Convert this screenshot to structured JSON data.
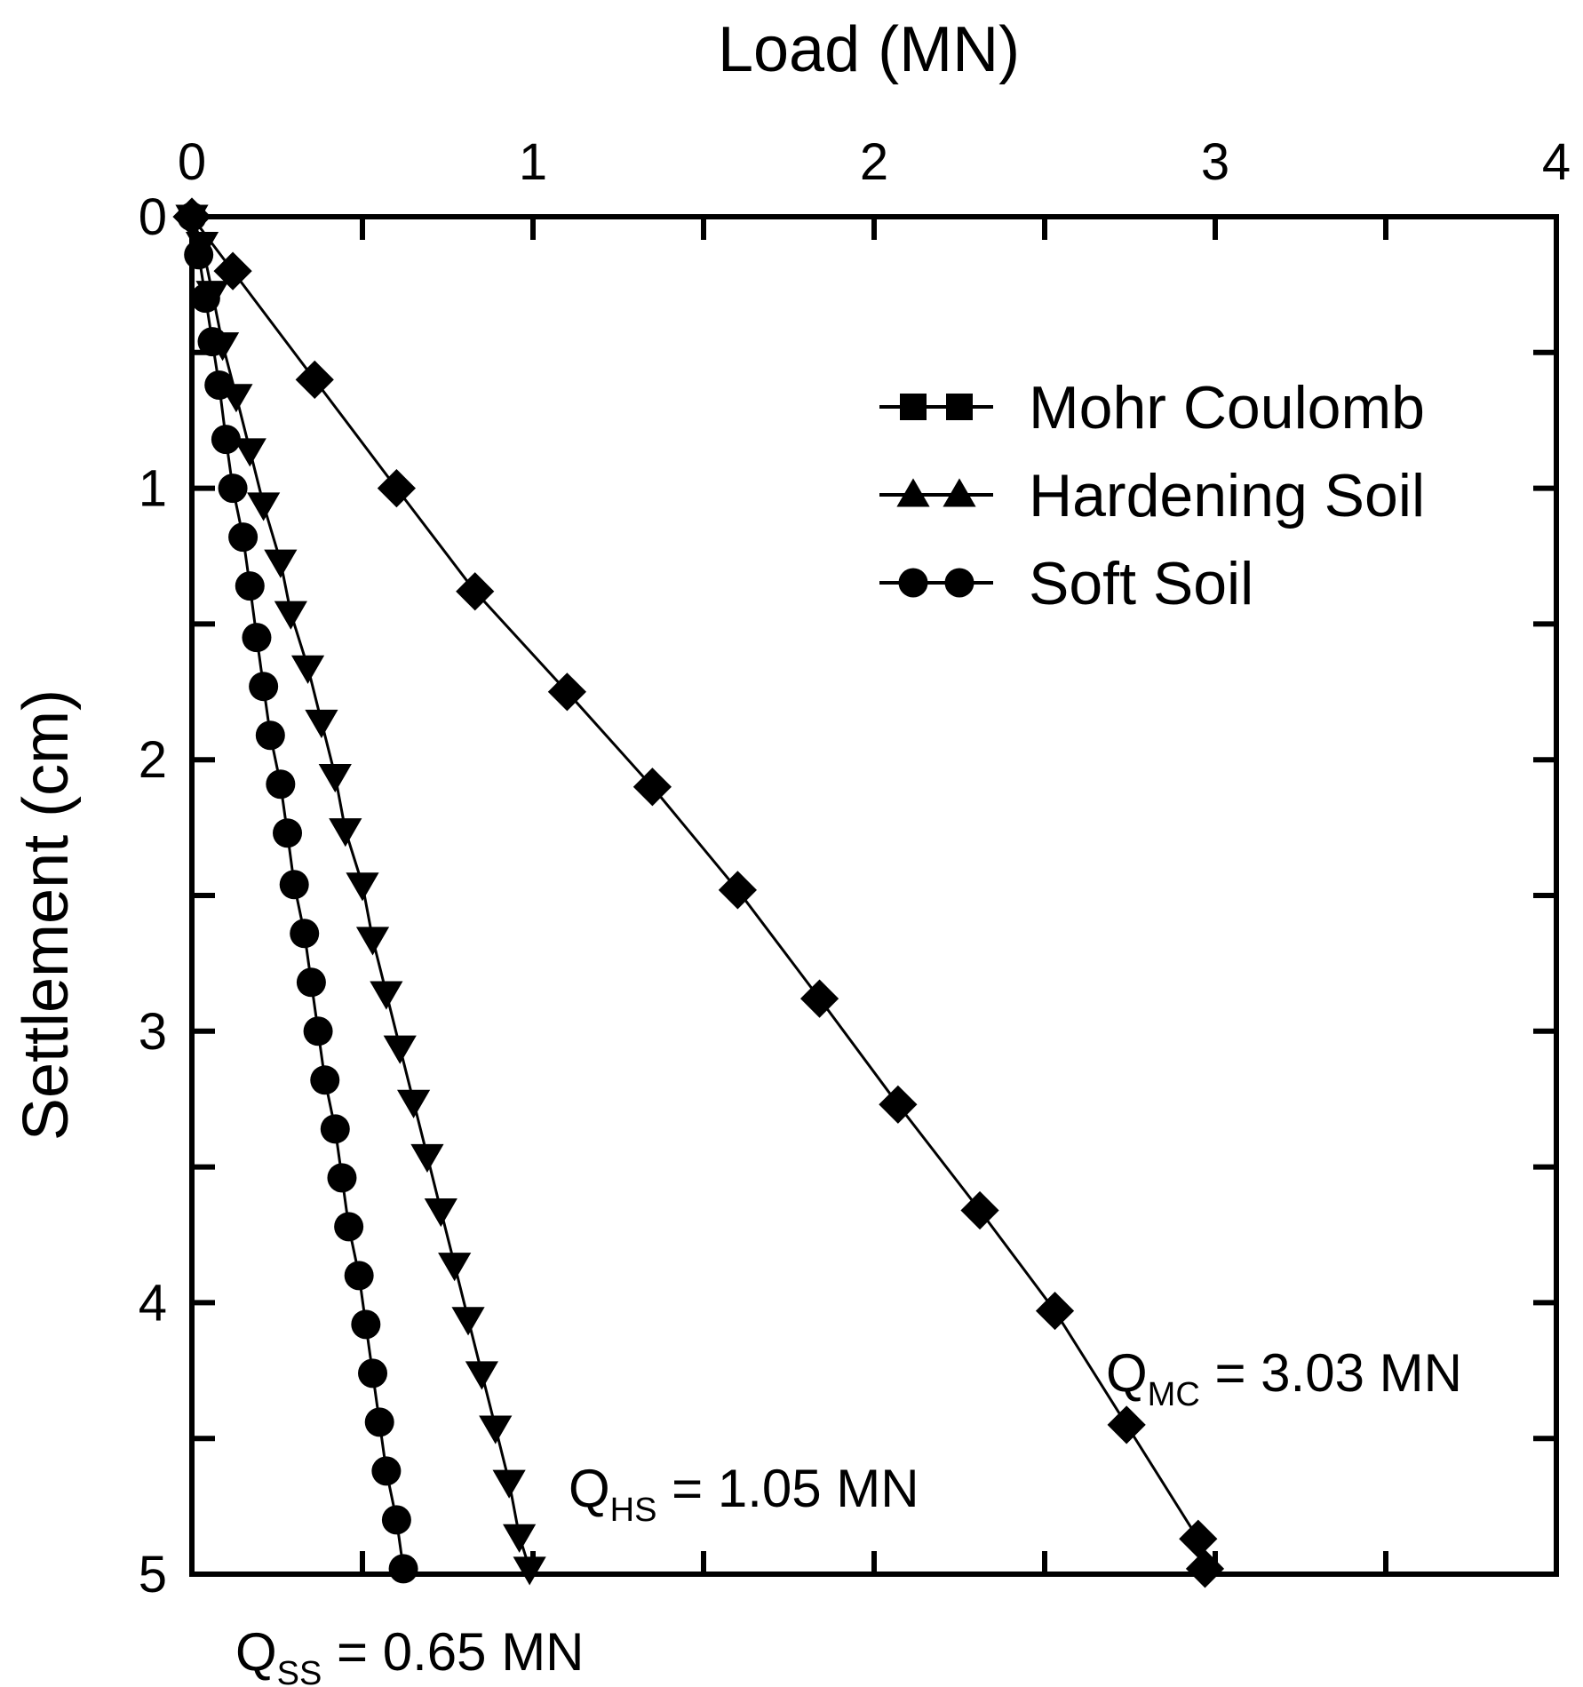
{
  "chart_data": {
    "type": "line",
    "xlabel": "Load (MN)",
    "ylabel": "Settlement (cm)",
    "xlim": [
      0,
      4
    ],
    "ylim": [
      0,
      5
    ],
    "x_axis_position": "top",
    "y_axis_inverted": true,
    "xticks": [
      0,
      1,
      2,
      3,
      4
    ],
    "yticks": [
      0,
      1,
      2,
      3,
      4,
      5
    ],
    "legend_position": "top-right",
    "grid": false,
    "series": [
      {
        "name": "Mohr Coulomb",
        "legend_marker": "square",
        "plot_marker": "diamond",
        "points": [
          {
            "x": 0.0,
            "y": 0.0
          },
          {
            "x": 0.12,
            "y": 0.2
          },
          {
            "x": 0.36,
            "y": 0.6
          },
          {
            "x": 0.6,
            "y": 1.0
          },
          {
            "x": 0.83,
            "y": 1.38
          },
          {
            "x": 1.1,
            "y": 1.75
          },
          {
            "x": 1.35,
            "y": 2.1
          },
          {
            "x": 1.6,
            "y": 2.48
          },
          {
            "x": 1.84,
            "y": 2.88
          },
          {
            "x": 2.07,
            "y": 3.27
          },
          {
            "x": 2.31,
            "y": 3.66
          },
          {
            "x": 2.53,
            "y": 4.03
          },
          {
            "x": 2.74,
            "y": 4.45
          },
          {
            "x": 2.95,
            "y": 4.87
          },
          {
            "x": 2.97,
            "y": 4.98
          }
        ]
      },
      {
        "name": "Hardening Soil",
        "legend_marker": "triangle-up",
        "plot_marker": "triangle-down",
        "points": [
          {
            "x": 0.0,
            "y": 0.0
          },
          {
            "x": 0.03,
            "y": 0.1
          },
          {
            "x": 0.06,
            "y": 0.28
          },
          {
            "x": 0.09,
            "y": 0.47
          },
          {
            "x": 0.13,
            "y": 0.66
          },
          {
            "x": 0.17,
            "y": 0.86
          },
          {
            "x": 0.21,
            "y": 1.06
          },
          {
            "x": 0.26,
            "y": 1.27
          },
          {
            "x": 0.29,
            "y": 1.46
          },
          {
            "x": 0.34,
            "y": 1.66
          },
          {
            "x": 0.38,
            "y": 1.86
          },
          {
            "x": 0.42,
            "y": 2.06
          },
          {
            "x": 0.45,
            "y": 2.26
          },
          {
            "x": 0.5,
            "y": 2.46
          },
          {
            "x": 0.53,
            "y": 2.66
          },
          {
            "x": 0.57,
            "y": 2.86
          },
          {
            "x": 0.61,
            "y": 3.06
          },
          {
            "x": 0.65,
            "y": 3.26
          },
          {
            "x": 0.69,
            "y": 3.46
          },
          {
            "x": 0.73,
            "y": 3.66
          },
          {
            "x": 0.77,
            "y": 3.86
          },
          {
            "x": 0.81,
            "y": 4.06
          },
          {
            "x": 0.85,
            "y": 4.26
          },
          {
            "x": 0.89,
            "y": 4.46
          },
          {
            "x": 0.93,
            "y": 4.66
          },
          {
            "x": 0.96,
            "y": 4.86
          },
          {
            "x": 0.99,
            "y": 4.98
          }
        ]
      },
      {
        "name": "Soft Soil",
        "legend_marker": "circle",
        "plot_marker": "circle",
        "points": [
          {
            "x": 0.0,
            "y": 0.0
          },
          {
            "x": 0.02,
            "y": 0.14
          },
          {
            "x": 0.04,
            "y": 0.3
          },
          {
            "x": 0.06,
            "y": 0.46
          },
          {
            "x": 0.08,
            "y": 0.62
          },
          {
            "x": 0.1,
            "y": 0.82
          },
          {
            "x": 0.12,
            "y": 1.0
          },
          {
            "x": 0.15,
            "y": 1.18
          },
          {
            "x": 0.17,
            "y": 1.36
          },
          {
            "x": 0.19,
            "y": 1.55
          },
          {
            "x": 0.21,
            "y": 1.73
          },
          {
            "x": 0.23,
            "y": 1.91
          },
          {
            "x": 0.26,
            "y": 2.09
          },
          {
            "x": 0.28,
            "y": 2.27
          },
          {
            "x": 0.3,
            "y": 2.46
          },
          {
            "x": 0.33,
            "y": 2.64
          },
          {
            "x": 0.35,
            "y": 2.82
          },
          {
            "x": 0.37,
            "y": 3.0
          },
          {
            "x": 0.39,
            "y": 3.18
          },
          {
            "x": 0.42,
            "y": 3.36
          },
          {
            "x": 0.44,
            "y": 3.54
          },
          {
            "x": 0.46,
            "y": 3.72
          },
          {
            "x": 0.49,
            "y": 3.9
          },
          {
            "x": 0.51,
            "y": 4.08
          },
          {
            "x": 0.53,
            "y": 4.26
          },
          {
            "x": 0.55,
            "y": 4.44
          },
          {
            "x": 0.57,
            "y": 4.62
          },
          {
            "x": 0.6,
            "y": 4.8
          },
          {
            "x": 0.62,
            "y": 4.98
          }
        ]
      }
    ],
    "annotations": [
      {
        "symbol": "Q",
        "subscript": "MC",
        "text": " = 3.03 MN",
        "near": {
          "x": 3.15,
          "y": 4.4
        }
      },
      {
        "symbol": "Q",
        "subscript": "HS",
        "text": " = 1.05 MN",
        "near": {
          "x": 1.35,
          "y": 4.87
        }
      },
      {
        "symbol": "Q",
        "subscript": "SS",
        "text": " = 0.65 MN",
        "near": {
          "x": 0.3,
          "y": 5.3
        }
      }
    ]
  }
}
